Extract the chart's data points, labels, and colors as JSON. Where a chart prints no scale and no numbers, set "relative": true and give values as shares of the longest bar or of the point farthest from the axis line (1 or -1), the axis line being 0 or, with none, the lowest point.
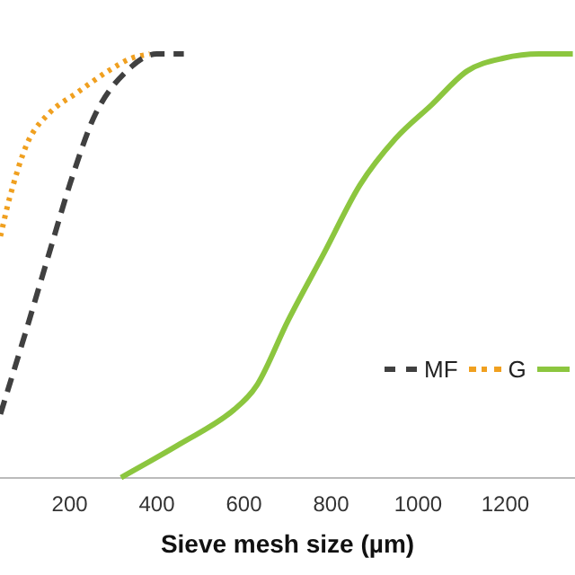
{
  "chart_data": {
    "type": "line",
    "xlabel": "Sieve mesh size (µm)",
    "relative": true,
    "xlim": [
      40,
      1360
    ],
    "xticks": [
      200,
      400,
      600,
      800,
      1000,
      1200
    ],
    "grid": false,
    "legend": "right",
    "marker": "none",
    "series": [
      {
        "name": "MF",
        "color": "#404040",
        "line_style": "dashed",
        "x": [
          41,
          95,
          153,
          206,
          260,
          342,
          400,
          462
        ],
        "values": [
          0.15,
          0.33,
          0.53,
          0.71,
          0.86,
          0.97,
          1.0,
          1.0
        ]
      },
      {
        "name": "G",
        "color": "#f0a020",
        "line_style": "dotted",
        "x": [
          41,
          62,
          103,
          153,
          219,
          289,
          342,
          384
        ],
        "values": [
          0.57,
          0.66,
          0.79,
          0.86,
          0.91,
          0.96,
          0.99,
          1.0
        ]
      },
      {
        "color": "#8cc63f",
        "line_style": "solid",
        "x": [
          318,
          454,
          577,
          631,
          701,
          784,
          866,
          948,
          1031,
          1113,
          1196,
          1278,
          1355
        ],
        "values": [
          0,
          0.08,
          0.16,
          0.22,
          0.37,
          0.53,
          0.69,
          0.8,
          0.88,
          0.96,
          0.99,
          1.0,
          1.0
        ]
      }
    ]
  }
}
